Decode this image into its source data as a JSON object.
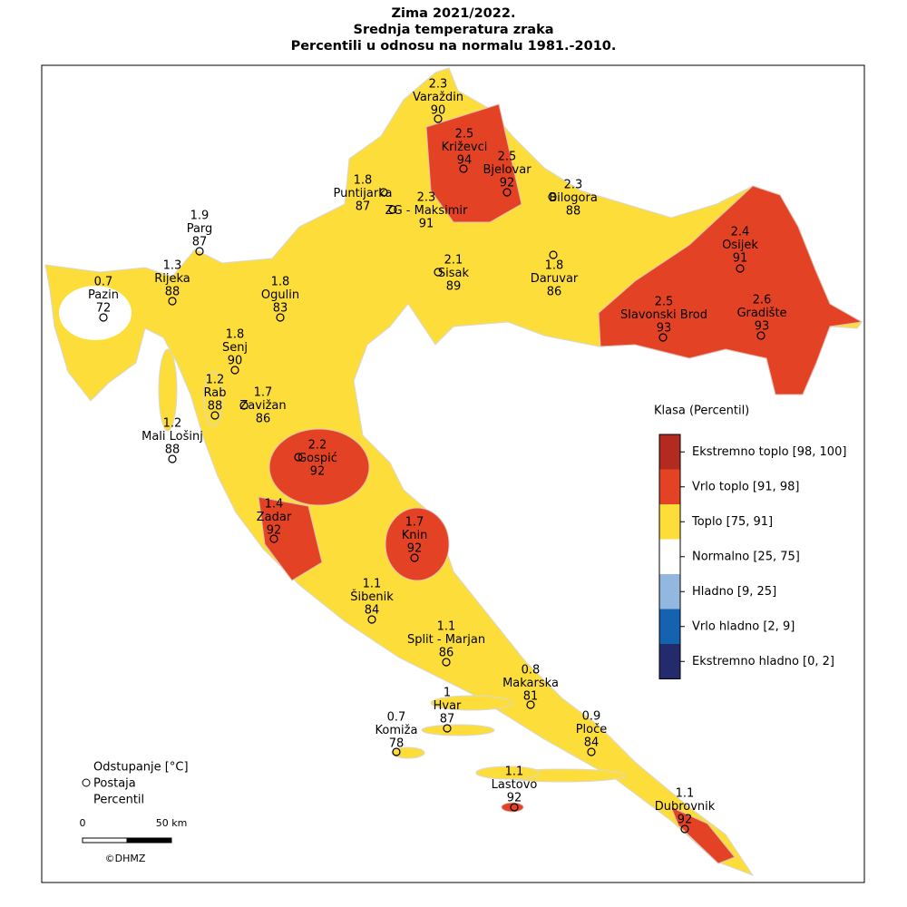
{
  "title": [
    "Zima 2021/2022.",
    "Srednja temperatura zraka",
    "Percentili u odnosu na normalu 1981.-2010."
  ],
  "stations": [
    {
      "name": "Varaždin",
      "deviation": 2.3,
      "percentile": 90
    },
    {
      "name": "Križevci",
      "deviation": 2.5,
      "percentile": 94
    },
    {
      "name": "Bjelovar",
      "deviation": 2.5,
      "percentile": 92
    },
    {
      "name": "Puntijarka",
      "deviation": 1.8,
      "percentile": 87
    },
    {
      "name": "ZG - Maksimir",
      "deviation": 2.3,
      "percentile": 91
    },
    {
      "name": "Bilogora",
      "deviation": 2.3,
      "percentile": 88
    },
    {
      "name": "Parg",
      "deviation": 1.9,
      "percentile": 87
    },
    {
      "name": "Rijeka",
      "deviation": 1.3,
      "percentile": 88
    },
    {
      "name": "Pazin",
      "deviation": 0.7,
      "percentile": 72
    },
    {
      "name": "Ogulin",
      "deviation": 1.8,
      "percentile": 83
    },
    {
      "name": "Sisak",
      "deviation": 2.1,
      "percentile": 89
    },
    {
      "name": "Daruvar",
      "deviation": 1.8,
      "percentile": 86
    },
    {
      "name": "Osijek",
      "deviation": 2.4,
      "percentile": 91
    },
    {
      "name": "Slavonski Brod",
      "deviation": 2.5,
      "percentile": 93
    },
    {
      "name": "Gradište",
      "deviation": 2.6,
      "percentile": 93
    },
    {
      "name": "Senj",
      "deviation": 1.8,
      "percentile": 90
    },
    {
      "name": "Rab",
      "deviation": 1.2,
      "percentile": 88
    },
    {
      "name": "Zavižan",
      "deviation": 1.7,
      "percentile": 86
    },
    {
      "name": "Mali Lošinj",
      "deviation": 1.2,
      "percentile": 88
    },
    {
      "name": "Gospić",
      "deviation": 2.2,
      "percentile": 92
    },
    {
      "name": "Zadar",
      "deviation": 1.4,
      "percentile": 92
    },
    {
      "name": "Knin",
      "deviation": 1.7,
      "percentile": 92
    },
    {
      "name": "Šibenik",
      "deviation": 1.1,
      "percentile": 84
    },
    {
      "name": "Split - Marjan",
      "deviation": 1.1,
      "percentile": 86
    },
    {
      "name": "Makarska",
      "deviation": 0.8,
      "percentile": 81
    },
    {
      "name": "Hvar",
      "deviation": 1,
      "percentile": 87
    },
    {
      "name": "Komiža",
      "deviation": 0.7,
      "percentile": 78
    },
    {
      "name": "Ploče",
      "deviation": 0.9,
      "percentile": 84
    },
    {
      "name": "Lastovo",
      "deviation": 1.1,
      "percentile": 92
    },
    {
      "name": "Dubrovnik",
      "deviation": 1.1,
      "percentile": 92
    }
  ],
  "legend": {
    "title": "Klasa (Percentil)",
    "classes": [
      {
        "label": "Ekstremno toplo [98, 100]",
        "color": "#b22a20"
      },
      {
        "label": "Vrlo toplo [91, 98]",
        "color": "#e34324"
      },
      {
        "label": "Toplo [75, 91]",
        "color": "#fddd3a"
      },
      {
        "label": "Normalno [25, 75]",
        "color": "#ffffff"
      },
      {
        "label": "Hladno [9, 25]",
        "color": "#93b8e0"
      },
      {
        "label": "Vrlo hladno [2, 9]",
        "color": "#1563b0"
      },
      {
        "label": "Ekstremno hladno [0, 2]",
        "color": "#242b6c"
      }
    ]
  },
  "key": {
    "deviation": "Odstupanje [°C]",
    "station": "Postaja",
    "percentile": "Percentil"
  },
  "scale": {
    "start": 0,
    "end": "50 km"
  },
  "credit": "©DHMZ"
}
